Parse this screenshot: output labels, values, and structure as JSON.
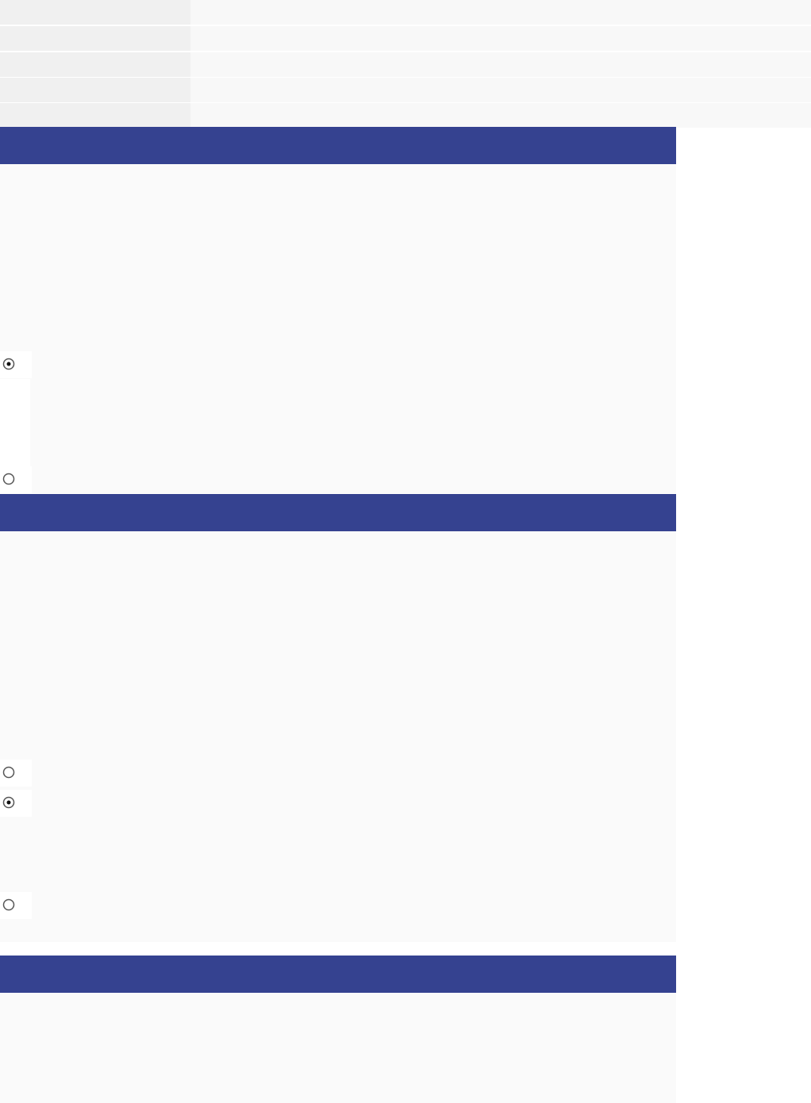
{
  "sections": [
    {
      "radios": [
        {
          "checked": true
        },
        {
          "checked": false
        }
      ]
    },
    {
      "radios": [
        {
          "checked": false
        },
        {
          "checked": true
        },
        {
          "checked": false
        }
      ]
    },
    {
      "radios": []
    }
  ]
}
